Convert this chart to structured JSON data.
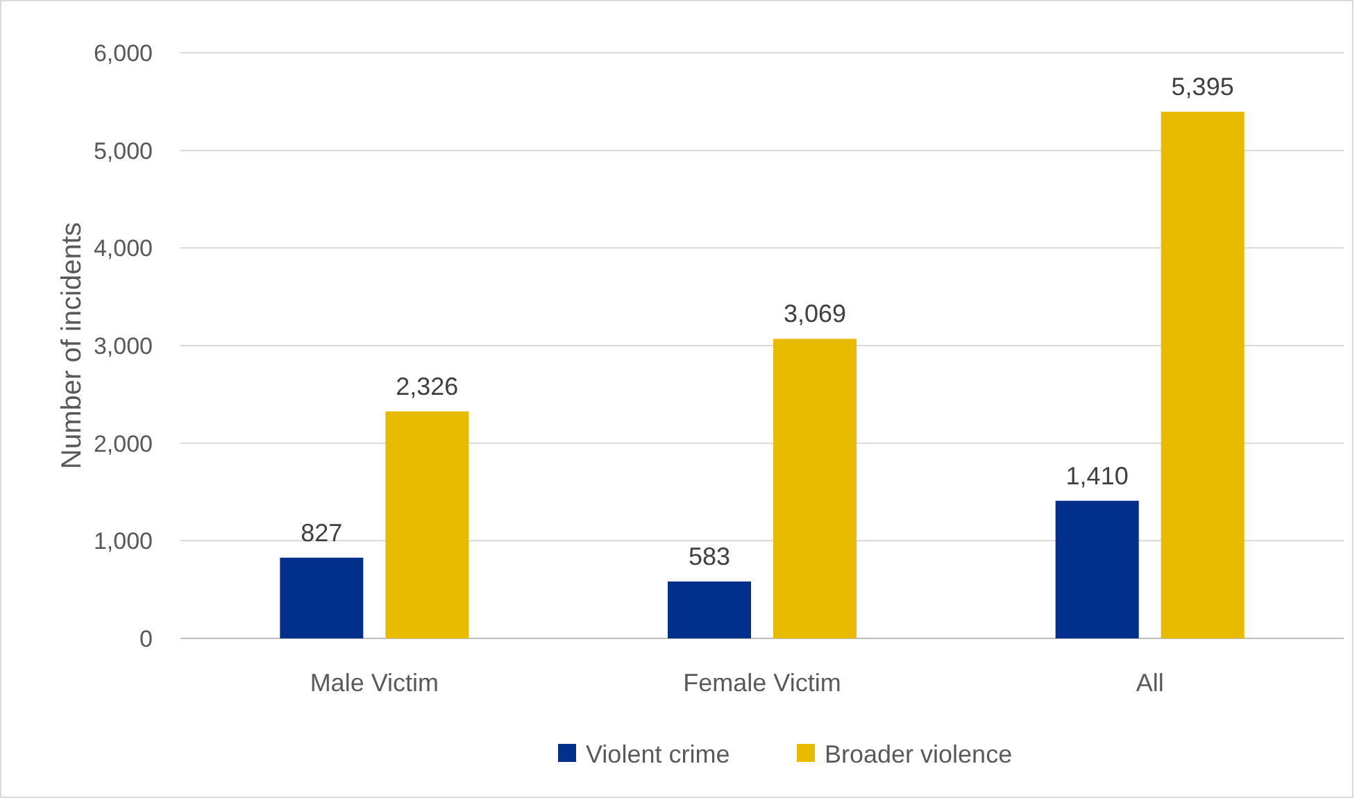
{
  "chart_data": {
    "type": "bar",
    "ylabel": "Number of incidents",
    "categories": [
      "Male Victim",
      "Female Victim",
      "All"
    ],
    "series": [
      {
        "name": "Violent crime",
        "color": "#00308c",
        "values": [
          827,
          583,
          1410
        ],
        "value_labels": [
          "827",
          "583",
          "1,410"
        ]
      },
      {
        "name": "Broader violence",
        "color": "#e8bb00",
        "values": [
          2326,
          3069,
          5395
        ],
        "value_labels": [
          "2,326",
          "3,069",
          "5,395"
        ]
      }
    ],
    "ylim": [
      0,
      6000
    ],
    "yticks": [
      0,
      {
        "value": 1000,
        "label": "1,000"
      },
      {
        "value": 2000,
        "label": "2,000"
      },
      {
        "value": 3000,
        "label": "3,000"
      },
      {
        "value": 4000,
        "label": "4,000"
      },
      {
        "value": 5000,
        "label": "5,000"
      },
      {
        "value": 6000,
        "label": "6,000"
      }
    ],
    "grid": "y",
    "legend": "bottom"
  }
}
